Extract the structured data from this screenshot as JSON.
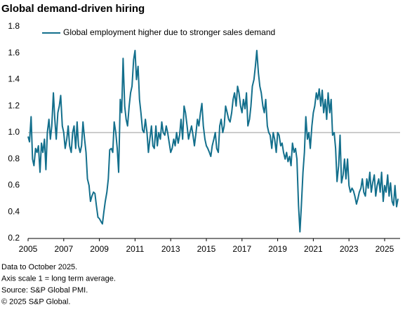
{
  "chart_data": {
    "type": "line",
    "title": "Global demand-driven hiring",
    "notes": [
      "Data to October 2025.",
      "Axis scale 1 = long term average.",
      "Source: S&P Global PMI.",
      "© 2025 S&P Global."
    ],
    "x": [
      2005.0,
      2005.08,
      2005.17,
      2005.25,
      2005.33,
      2005.42,
      2005.5,
      2005.58,
      2005.67,
      2005.75,
      2005.83,
      2005.92,
      2006.0,
      2006.08,
      2006.17,
      2006.25,
      2006.33,
      2006.42,
      2006.5,
      2006.58,
      2006.67,
      2006.75,
      2006.83,
      2006.92,
      2007.0,
      2007.08,
      2007.17,
      2007.25,
      2007.33,
      2007.42,
      2007.5,
      2007.58,
      2007.67,
      2007.75,
      2007.83,
      2007.92,
      2008.0,
      2008.08,
      2008.17,
      2008.25,
      2008.33,
      2008.42,
      2008.5,
      2008.58,
      2008.67,
      2008.75,
      2008.83,
      2008.92,
      2009.0,
      2009.08,
      2009.17,
      2009.25,
      2009.33,
      2009.42,
      2009.5,
      2009.58,
      2009.67,
      2009.75,
      2009.83,
      2009.92,
      2010.0,
      2010.08,
      2010.17,
      2010.25,
      2010.33,
      2010.42,
      2010.5,
      2010.58,
      2010.67,
      2010.75,
      2010.83,
      2010.92,
      2011.0,
      2011.08,
      2011.17,
      2011.25,
      2011.33,
      2011.42,
      2011.5,
      2011.58,
      2011.67,
      2011.75,
      2011.83,
      2011.92,
      2012.0,
      2012.08,
      2012.17,
      2012.25,
      2012.33,
      2012.42,
      2012.5,
      2012.58,
      2012.67,
      2012.75,
      2012.83,
      2012.92,
      2013.0,
      2013.08,
      2013.17,
      2013.25,
      2013.33,
      2013.42,
      2013.5,
      2013.58,
      2013.67,
      2013.75,
      2013.83,
      2013.92,
      2014.0,
      2014.08,
      2014.17,
      2014.25,
      2014.33,
      2014.42,
      2014.5,
      2014.58,
      2014.67,
      2014.75,
      2014.83,
      2014.92,
      2015.0,
      2015.08,
      2015.17,
      2015.25,
      2015.33,
      2015.42,
      2015.5,
      2015.58,
      2015.67,
      2015.75,
      2015.83,
      2015.92,
      2016.0,
      2016.08,
      2016.17,
      2016.25,
      2016.33,
      2016.42,
      2016.5,
      2016.58,
      2016.67,
      2016.75,
      2016.83,
      2016.92,
      2017.0,
      2017.08,
      2017.17,
      2017.25,
      2017.33,
      2017.42,
      2017.5,
      2017.58,
      2017.67,
      2017.75,
      2017.83,
      2017.92,
      2018.0,
      2018.08,
      2018.17,
      2018.25,
      2018.33,
      2018.42,
      2018.5,
      2018.58,
      2018.67,
      2018.75,
      2018.83,
      2018.92,
      2019.0,
      2019.08,
      2019.17,
      2019.25,
      2019.33,
      2019.42,
      2019.5,
      2019.58,
      2019.67,
      2019.75,
      2019.83,
      2019.92,
      2020.0,
      2020.08,
      2020.17,
      2020.25,
      2020.33,
      2020.42,
      2020.5,
      2020.58,
      2020.67,
      2020.75,
      2020.83,
      2020.92,
      2021.0,
      2021.08,
      2021.17,
      2021.25,
      2021.33,
      2021.42,
      2021.5,
      2021.58,
      2021.67,
      2021.75,
      2021.83,
      2021.92,
      2022.0,
      2022.08,
      2022.17,
      2022.25,
      2022.33,
      2022.42,
      2022.5,
      2022.58,
      2022.67,
      2022.75,
      2022.83,
      2022.92,
      2023.0,
      2023.08,
      2023.17,
      2023.25,
      2023.33,
      2023.42,
      2023.5,
      2023.58,
      2023.67,
      2023.75,
      2023.83,
      2023.92,
      2024.0,
      2024.08,
      2024.17,
      2024.25,
      2024.33,
      2024.42,
      2024.5,
      2024.58,
      2024.67,
      2024.75,
      2024.83,
      2024.92,
      2025.0,
      2025.08,
      2025.17,
      2025.25,
      2025.33,
      2025.42,
      2025.5,
      2025.58,
      2025.67,
      2025.75
    ],
    "series": [
      {
        "name": "Global employment higher due to stronger sales demand",
        "color": "#136f8c",
        "values": [
          0.97,
          0.93,
          1.12,
          0.8,
          0.75,
          0.88,
          0.85,
          0.9,
          0.7,
          0.92,
          0.85,
          0.95,
          0.72,
          1.0,
          1.1,
          0.95,
          1.05,
          1.3,
          1.1,
          0.95,
          1.15,
          1.2,
          1.28,
          1.05,
          1.0,
          0.88,
          0.95,
          1.05,
          0.9,
          0.85,
          1.0,
          1.05,
          0.88,
          1.08,
          0.9,
          0.85,
          0.9,
          1.08,
          0.95,
          0.85,
          0.65,
          0.6,
          0.48,
          0.52,
          0.55,
          0.54,
          0.45,
          0.36,
          0.35,
          0.33,
          0.31,
          0.4,
          0.48,
          0.55,
          0.65,
          0.87,
          0.88,
          0.85,
          1.08,
          1.0,
          0.88,
          0.7,
          1.25,
          1.15,
          1.56,
          1.2,
          1.1,
          1.05,
          1.2,
          1.3,
          1.35,
          1.55,
          1.62,
          1.4,
          1.5,
          1.25,
          1.15,
          1.02,
          1.0,
          1.1,
          1.0,
          0.85,
          0.95,
          1.05,
          0.9,
          0.88,
          1.05,
          0.9,
          1.0,
          0.95,
          1.08,
          1.0,
          0.98,
          1.05,
          1.0,
          0.92,
          0.85,
          0.88,
          0.95,
          0.9,
          1.0,
          0.92,
          0.98,
          1.1,
          0.95,
          1.2,
          1.15,
          1.05,
          0.95,
          1.0,
          1.05,
          0.98,
          0.9,
          1.0,
          1.1,
          1.05,
          1.15,
          1.22,
          1.05,
          0.95,
          0.9,
          0.88,
          0.85,
          0.82,
          0.9,
          0.95,
          1.0,
          0.88,
          0.85,
          1.05,
          1.1,
          1.0,
          1.05,
          1.2,
          1.15,
          1.1,
          1.08,
          1.15,
          1.25,
          1.3,
          1.2,
          1.35,
          1.3,
          1.2,
          1.15,
          1.25,
          1.18,
          1.3,
          1.05,
          1.1,
          1.2,
          1.35,
          1.4,
          1.5,
          1.62,
          1.45,
          1.35,
          1.3,
          1.2,
          1.15,
          1.25,
          1.05,
          1.0,
          0.98,
          0.88,
          1.0,
          0.95,
          0.85,
          1.0,
          0.98,
          0.9,
          0.92,
          0.85,
          0.8,
          0.85,
          0.78,
          0.82,
          0.75,
          0.92,
          0.85,
          0.88,
          0.8,
          0.45,
          0.25,
          0.45,
          0.7,
          0.85,
          1.12,
          0.95,
          1.0,
          0.88,
          1.05,
          1.15,
          1.2,
          1.3,
          1.25,
          1.33,
          1.2,
          1.32,
          1.15,
          1.25,
          1.1,
          1.3,
          1.15,
          1.25,
          0.98,
          1.0,
          0.88,
          0.63,
          0.75,
          0.98,
          0.62,
          0.68,
          0.8,
          0.65,
          0.8,
          0.6,
          0.55,
          0.58,
          0.56,
          0.52,
          0.46,
          0.5,
          0.55,
          0.58,
          0.65,
          0.55,
          0.52,
          0.65,
          0.58,
          0.7,
          0.55,
          0.62,
          0.68,
          0.52,
          0.6,
          0.65,
          0.55,
          0.7,
          0.48,
          0.6,
          0.55,
          0.68,
          0.52,
          0.62,
          0.48,
          0.45,
          0.6,
          0.44,
          0.5
        ]
      }
    ],
    "xlim": [
      2005,
      2025.8
    ],
    "xticks": [
      2005,
      2007,
      2009,
      2011,
      2013,
      2015,
      2017,
      2019,
      2021,
      2023,
      2025
    ],
    "ylim": [
      0.2,
      1.8
    ],
    "yticks": [
      0.2,
      0.4,
      0.6,
      0.8,
      {
        "value": 1,
        "label": "1.0"
      },
      1.2,
      1.4,
      1.6,
      1.8
    ],
    "reference_line": 1,
    "reference_color": "#9a9a9a",
    "grid": false,
    "legend": "top-left"
  }
}
